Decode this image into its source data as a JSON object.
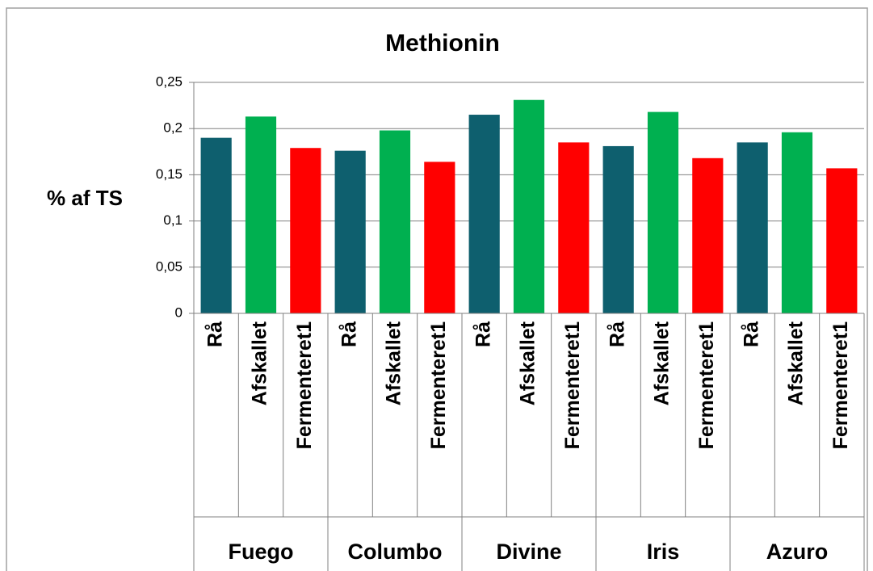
{
  "chart_data": {
    "type": "bar",
    "title": "Methionin",
    "y_label": "% af TS",
    "groups": [
      "Fuego",
      "Columbo",
      "Divine",
      "Iris",
      "Azuro"
    ],
    "categories": [
      "Rå",
      "Afskallet",
      "Fermenteret1",
      "Rå",
      "Afskallet",
      "Fermenteret1",
      "Rå",
      "Afskallet",
      "Fermenteret1",
      "Rå",
      "Afskallet",
      "Fermenteret1",
      "Rå",
      "Afskallet",
      "Fermenteret1"
    ],
    "values": [
      0.19,
      0.213,
      0.179,
      0.176,
      0.198,
      0.164,
      0.215,
      0.231,
      0.185,
      0.181,
      0.218,
      0.168,
      0.185,
      0.196,
      0.157
    ],
    "colors": [
      "#0e5f6e",
      "#00b050",
      "#ff0000"
    ],
    "ylim": [
      0,
      0.25
    ],
    "yticks": [
      0,
      {
        "value": 0.05,
        "label": "0,05"
      },
      {
        "value": 0.1,
        "label": "0,1"
      },
      {
        "value": 0.15,
        "label": "0,15"
      },
      {
        "value": 0.2,
        "label": "0,2"
      },
      {
        "value": 0.25,
        "label": "0,25"
      }
    ],
    "grid": true
  }
}
